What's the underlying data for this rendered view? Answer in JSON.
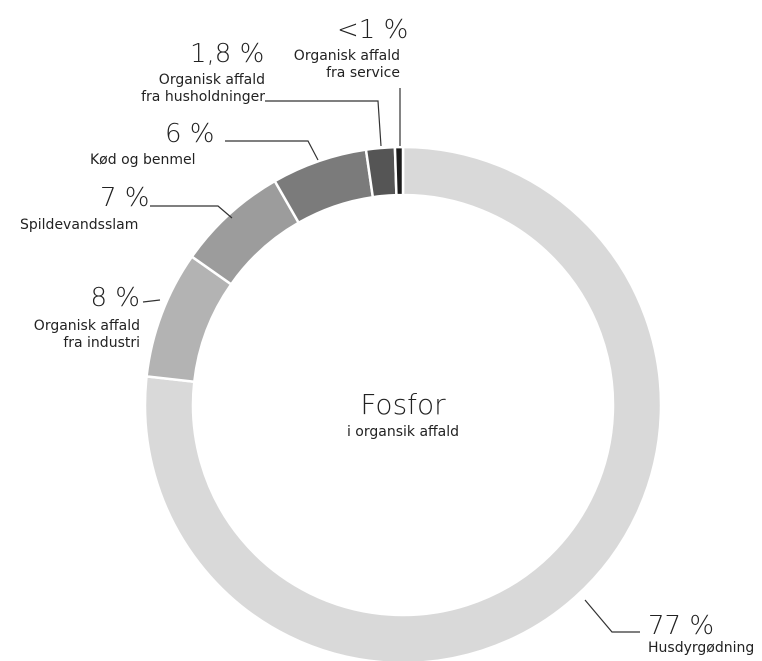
{
  "chart_data": {
    "type": "pie",
    "donut": true,
    "title": "Fosfor",
    "subtitle": "i organsik affald",
    "categories": [
      [
        "Husdyrgødning"
      ],
      [
        "Organisk affald",
        "fra industri"
      ],
      [
        "Spildevandsslam"
      ],
      [
        "Kød og benmel"
      ],
      [
        "Organisk affald",
        "fra husholdninger"
      ],
      [
        "Organisk affald",
        "fra service"
      ]
    ],
    "values": [
      77,
      8,
      7,
      6,
      1.8,
      0.5
    ],
    "value_labels": [
      "77 %",
      "8 %",
      "7 %",
      "6 %",
      "1,8 %",
      "<1 %"
    ],
    "colors": [
      "#d9d9d9",
      "#b3b3b3",
      "#9c9c9c",
      "#7b7b7b",
      "#555555",
      "#1c1c1c"
    ]
  }
}
